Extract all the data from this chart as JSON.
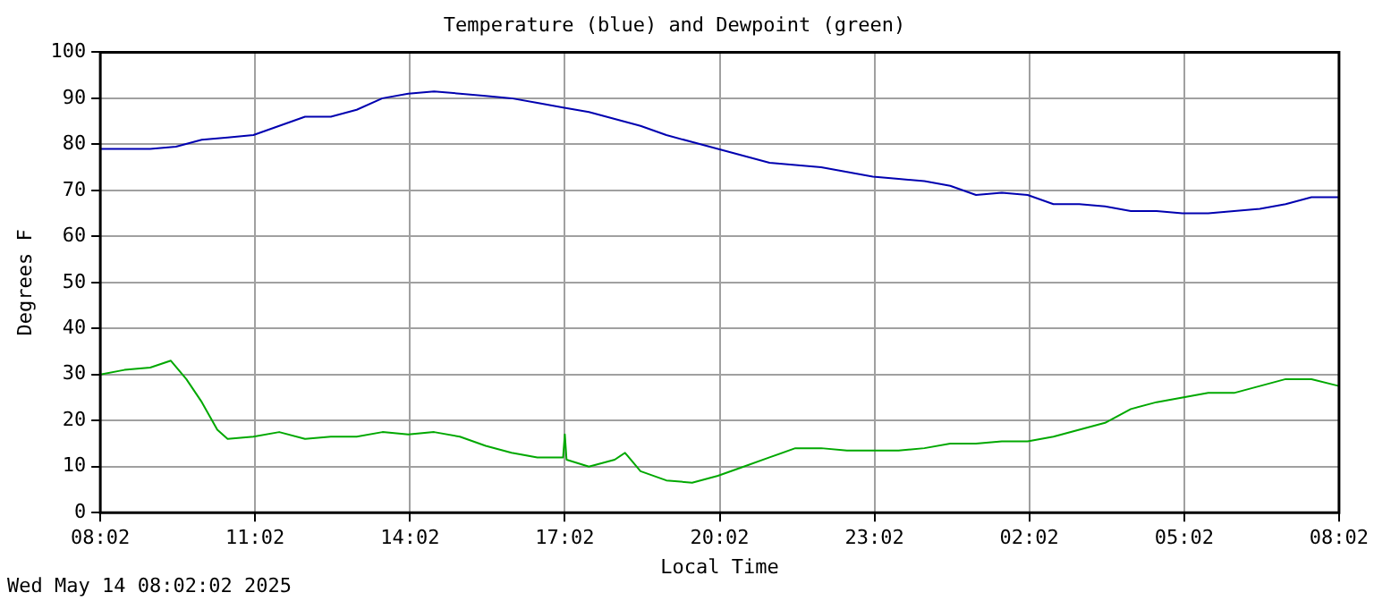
{
  "chart_data": {
    "type": "line",
    "title": "Temperature (blue) and Dewpoint (green)",
    "xlabel": "Local Time",
    "ylabel": "Degrees F",
    "annotations": [
      "Wed May 14 08:02:02 2025"
    ],
    "xlim": [
      "2025-05-14T08:02",
      "2025-05-15T08:02"
    ],
    "xticks": [
      {
        "value": "2025-05-14T08:02",
        "label": "08:02"
      },
      {
        "value": "2025-05-14T11:02",
        "label": "11:02"
      },
      {
        "value": "2025-05-14T14:02",
        "label": "14:02"
      },
      {
        "value": "2025-05-14T17:02",
        "label": "17:02"
      },
      {
        "value": "2025-05-14T20:02",
        "label": "20:02"
      },
      {
        "value": "2025-05-14T23:02",
        "label": "23:02"
      },
      {
        "value": "2025-05-15T02:02",
        "label": "02:02"
      },
      {
        "value": "2025-05-15T05:02",
        "label": "05:02"
      },
      {
        "value": "2025-05-15T08:02",
        "label": "08:02"
      }
    ],
    "ylim": [
      0,
      100
    ],
    "yticks": [
      0,
      10,
      20,
      30,
      40,
      50,
      60,
      70,
      80,
      90,
      100
    ],
    "grid": true,
    "legend": false,
    "marker": "none",
    "line_style": "solid",
    "series": [
      {
        "color": "#0000b0",
        "x": [
          "2025-05-14T08:02",
          "2025-05-14T09:00",
          "2025-05-14T09:30",
          "2025-05-14T10:00",
          "2025-05-14T10:30",
          "2025-05-14T11:00",
          "2025-05-14T11:30",
          "2025-05-14T12:00",
          "2025-05-14T12:30",
          "2025-05-14T13:00",
          "2025-05-14T13:30",
          "2025-05-14T14:00",
          "2025-05-14T14:30",
          "2025-05-14T15:00",
          "2025-05-14T15:30",
          "2025-05-14T16:00",
          "2025-05-14T16:30",
          "2025-05-14T17:00",
          "2025-05-14T17:30",
          "2025-05-14T18:00",
          "2025-05-14T18:30",
          "2025-05-14T19:00",
          "2025-05-14T19:30",
          "2025-05-14T20:00",
          "2025-05-14T20:30",
          "2025-05-14T21:00",
          "2025-05-14T21:30",
          "2025-05-14T22:00",
          "2025-05-14T22:30",
          "2025-05-14T23:00",
          "2025-05-14T23:30",
          "2025-05-15T00:00",
          "2025-05-15T00:30",
          "2025-05-15T01:00",
          "2025-05-15T01:30",
          "2025-05-15T02:00",
          "2025-05-15T02:30",
          "2025-05-15T03:00",
          "2025-05-15T03:30",
          "2025-05-15T04:00",
          "2025-05-15T04:30",
          "2025-05-15T05:00",
          "2025-05-15T05:30",
          "2025-05-15T06:00",
          "2025-05-15T06:30",
          "2025-05-15T07:00",
          "2025-05-15T07:30",
          "2025-05-15T08:02"
        ],
        "values": [
          79,
          79,
          79.5,
          81,
          81.5,
          82,
          84,
          86,
          86,
          87.5,
          90,
          91,
          91.5,
          91,
          90.5,
          90,
          89,
          88,
          87,
          85.5,
          84,
          82,
          80.5,
          79,
          77.5,
          76,
          75.5,
          75,
          74,
          73,
          72.5,
          72,
          71,
          69,
          69.5,
          69,
          67,
          67,
          66.5,
          65.5,
          65.5,
          65,
          65,
          65.5,
          66,
          67,
          68.5,
          68.5
        ]
      },
      {
        "color": "#00a800",
        "x": [
          "2025-05-14T08:02",
          "2025-05-14T08:30",
          "2025-05-14T09:00",
          "2025-05-14T09:24",
          "2025-05-14T09:42",
          "2025-05-14T10:00",
          "2025-05-14T10:18",
          "2025-05-14T10:30",
          "2025-05-14T11:00",
          "2025-05-14T11:30",
          "2025-05-14T12:00",
          "2025-05-14T12:30",
          "2025-05-14T13:00",
          "2025-05-14T13:30",
          "2025-05-14T14:00",
          "2025-05-14T14:30",
          "2025-05-14T15:00",
          "2025-05-14T15:30",
          "2025-05-14T16:00",
          "2025-05-14T16:30",
          "2025-05-14T17:00",
          "2025-05-14T17:02",
          "2025-05-14T17:04",
          "2025-05-14T17:30",
          "2025-05-14T18:00",
          "2025-05-14T18:12",
          "2025-05-14T18:30",
          "2025-05-14T19:00",
          "2025-05-14T19:30",
          "2025-05-14T20:00",
          "2025-05-14T20:30",
          "2025-05-14T21:00",
          "2025-05-14T21:30",
          "2025-05-14T22:00",
          "2025-05-14T22:30",
          "2025-05-14T23:00",
          "2025-05-14T23:30",
          "2025-05-15T00:00",
          "2025-05-15T00:30",
          "2025-05-15T01:00",
          "2025-05-15T01:30",
          "2025-05-15T02:00",
          "2025-05-15T02:30",
          "2025-05-15T03:00",
          "2025-05-15T03:30",
          "2025-05-15T04:00",
          "2025-05-15T04:30",
          "2025-05-15T05:00",
          "2025-05-15T05:30",
          "2025-05-15T06:00",
          "2025-05-15T06:30",
          "2025-05-15T07:00",
          "2025-05-15T07:30",
          "2025-05-15T08:02"
        ],
        "values": [
          30,
          31,
          31.5,
          33,
          29,
          24,
          18,
          16,
          16.5,
          17.5,
          16,
          16.5,
          16.5,
          17.5,
          17,
          17.5,
          16.5,
          14.5,
          13,
          12,
          12,
          17,
          11.5,
          10,
          11.5,
          13,
          9,
          7,
          6.5,
          8,
          10,
          12,
          14,
          14,
          13.5,
          13.5,
          13.5,
          14,
          15,
          15,
          15.5,
          15.5,
          16.5,
          18,
          19.5,
          22.5,
          24,
          25,
          26,
          26,
          27.5,
          29,
          29,
          27.5
        ]
      }
    ]
  }
}
